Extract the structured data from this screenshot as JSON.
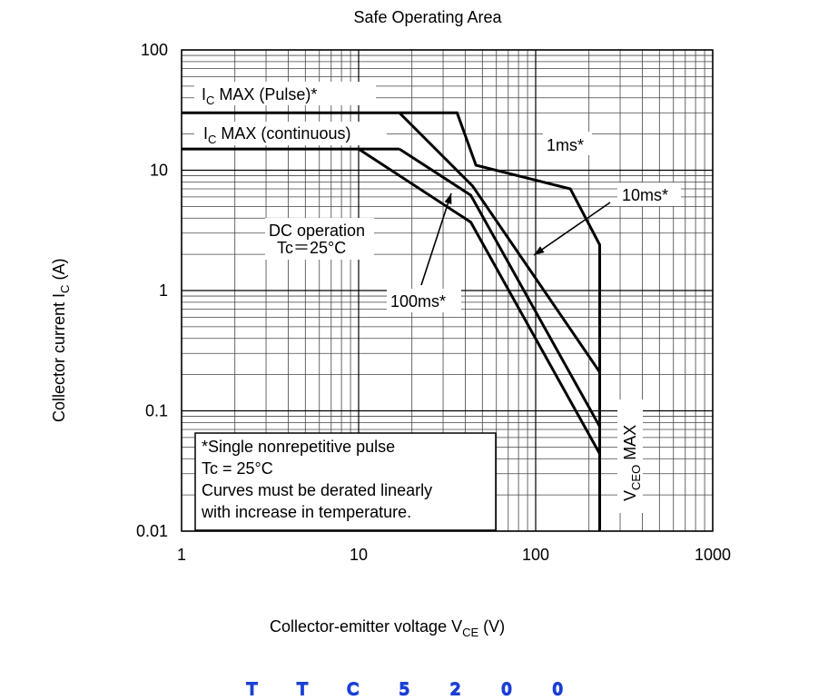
{
  "chart_data": {
    "type": "line",
    "title": "Safe Operating Area",
    "xlabel": [
      {
        "text": "Collector-emitter voltage   V"
      },
      {
        "text": "CE",
        "sub": true
      },
      {
        "text": "   (V)"
      }
    ],
    "ylabel": [
      {
        "text": "Collector current   I"
      },
      {
        "text": "C",
        "sub": true
      },
      {
        "text": "   (A)"
      }
    ],
    "xscale": "log",
    "yscale": "log",
    "xlim": [
      1,
      1000
    ],
    "ylim": [
      0.01,
      100
    ],
    "xticks": [
      1,
      10,
      100,
      1000
    ],
    "yticks": [
      100,
      10,
      1,
      0.1,
      0.01
    ],
    "grid": true,
    "minor_grid": true,
    "color": "#000000",
    "series": [
      {
        "x": [
          1,
          36,
          46,
          157,
          230,
          230
        ],
        "values": [
          30,
          30,
          11,
          7,
          2.4,
          0.01
        ]
      },
      {
        "x": [
          17,
          44,
          230
        ],
        "values": [
          30,
          7.4,
          0.21
        ]
      },
      {
        "x": [
          17,
          43,
          230
        ],
        "values": [
          15,
          6.2,
          0.074
        ]
      },
      {
        "x": [
          10,
          43,
          230
        ],
        "values": [
          15,
          3.7,
          0.044
        ]
      },
      {
        "x": [
          1,
          17
        ],
        "values": [
          15,
          15
        ]
      }
    ],
    "annotations": [
      [
        {
          "text": "I"
        },
        {
          "text": "C",
          "sub": true
        },
        {
          "text": " MAX (Pulse)*"
        }
      ],
      [
        {
          "text": "I"
        },
        {
          "text": "C",
          "sub": true
        },
        {
          "text": " MAX (continuous)"
        }
      ],
      [
        {
          "text": "1ms*"
        }
      ],
      [
        {
          "text": "10ms*"
        }
      ],
      [
        {
          "text": "DC operation"
        }
      ],
      [
        {
          "text": "Tc＝25°C"
        }
      ],
      [
        {
          "text": "100ms*"
        }
      ],
      [
        {
          "text": "V"
        },
        {
          "text": "CEO",
          "sub": true
        },
        {
          "text": " MAX"
        }
      ]
    ],
    "note": [
      "*Single nonrepetitive pulse",
      "Tc = 25°C",
      "Curves must be derated linearly",
      "with increase in temperature."
    ]
  },
  "handwriting": "TTC5200",
  "handwriting_color": "#1a3fd6"
}
